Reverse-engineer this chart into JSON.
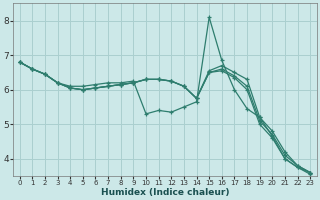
{
  "xlabel": "Humidex (Indice chaleur)",
  "ylabel": "",
  "bg_color": "#cce8e8",
  "grid_color": "#aacfcf",
  "line_color": "#2e7d6e",
  "xlim": [
    -0.5,
    23.5
  ],
  "ylim": [
    3.5,
    8.5
  ],
  "xticks": [
    0,
    1,
    2,
    3,
    4,
    5,
    6,
    7,
    8,
    9,
    10,
    11,
    12,
    13,
    14,
    15,
    16,
    17,
    18,
    19,
    20,
    21,
    22,
    23
  ],
  "yticks": [
    4,
    5,
    6,
    7,
    8
  ],
  "lines": [
    [
      6.8,
      6.6,
      6.45,
      6.2,
      6.1,
      6.1,
      6.15,
      6.2,
      6.2,
      6.25,
      5.3,
      5.4,
      5.35,
      5.5,
      5.65,
      8.1,
      6.85,
      6.0,
      5.45,
      5.2,
      4.65,
      4.0,
      3.75,
      3.6
    ],
    [
      6.8,
      6.6,
      6.45,
      6.2,
      6.05,
      6.0,
      6.05,
      6.1,
      6.15,
      6.2,
      6.3,
      6.3,
      6.25,
      6.1,
      5.75,
      6.55,
      6.7,
      6.5,
      6.3,
      5.2,
      4.8,
      4.2,
      3.8,
      3.6
    ],
    [
      6.8,
      6.6,
      6.45,
      6.2,
      6.05,
      6.0,
      6.05,
      6.1,
      6.15,
      6.2,
      6.3,
      6.3,
      6.25,
      6.1,
      5.75,
      6.5,
      6.6,
      6.4,
      6.1,
      5.1,
      4.7,
      4.1,
      3.8,
      3.6
    ],
    [
      6.8,
      6.6,
      6.45,
      6.2,
      6.05,
      6.0,
      6.05,
      6.1,
      6.15,
      6.2,
      6.3,
      6.3,
      6.25,
      6.1,
      5.75,
      6.5,
      6.55,
      6.35,
      6.0,
      5.0,
      4.6,
      4.0,
      3.75,
      3.55
    ]
  ]
}
